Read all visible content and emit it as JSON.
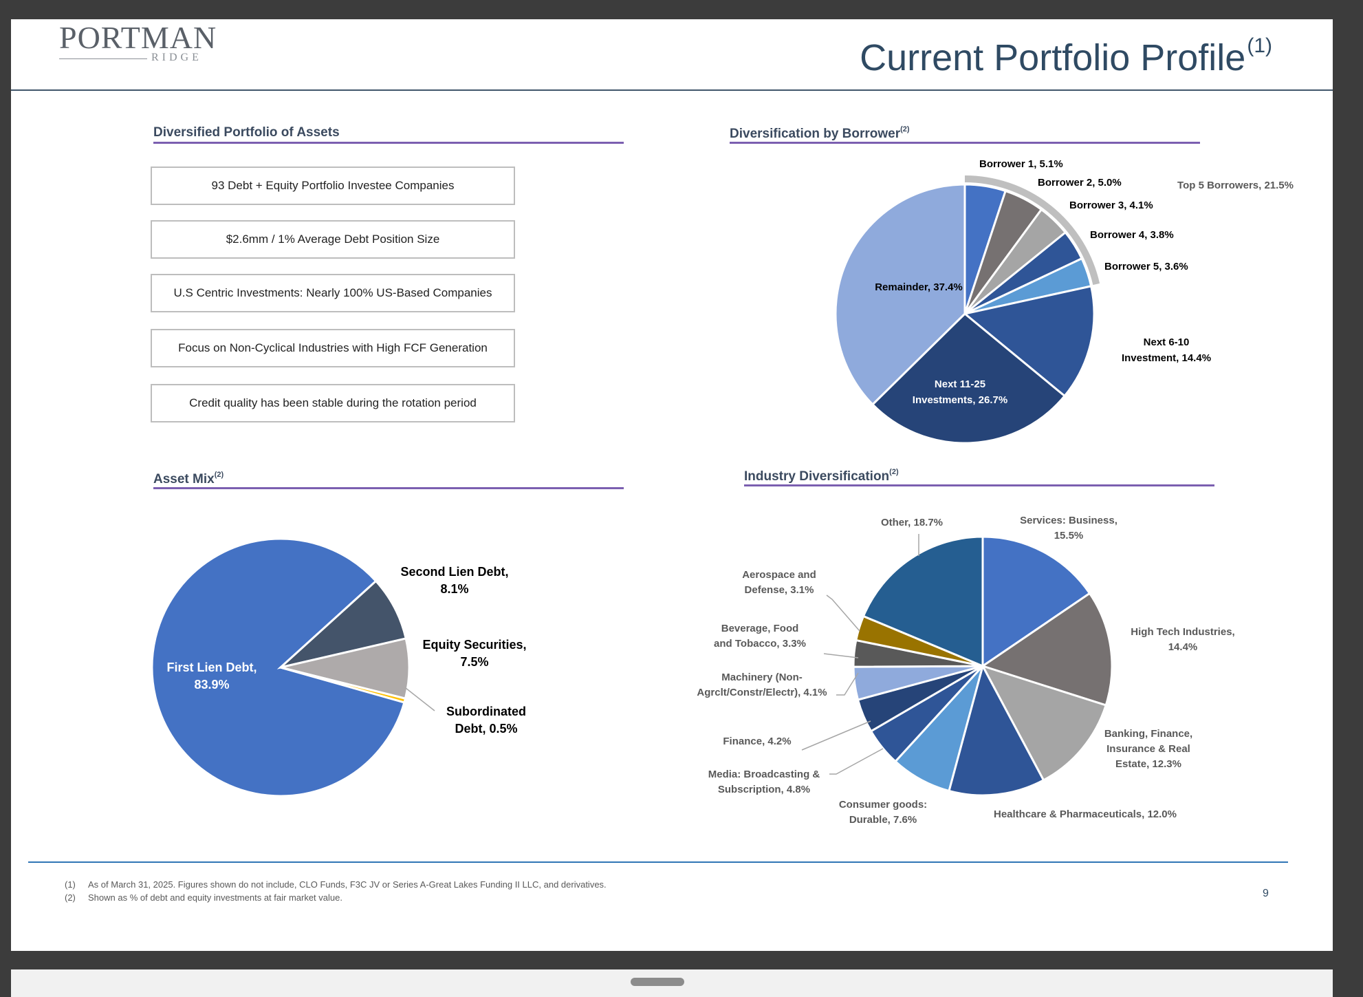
{
  "header": {
    "logo_main": "PORTMAN",
    "logo_sub": "RIDGE",
    "title": "Current Portfolio Profile",
    "title_sup": "(1)"
  },
  "sections": {
    "assets_title": "Diversified Portfolio of Assets",
    "borrower_title": "Diversification by Borrower",
    "borrower_sup": "(2)",
    "assetmix_title": "Asset Mix",
    "assetmix_sup": "(2)",
    "industry_title": "Industry Diversification",
    "industry_sup": "(2)"
  },
  "boxes": [
    "93 Debt + Equity Portfolio Investee Companies",
    "$2.6mm / 1% Average Debt Position Size",
    "U.S Centric Investments: Nearly 100% US-Based Companies",
    "Focus on Non-Cyclical Industries with High FCF Generation",
    "Credit quality has been stable during the rotation period"
  ],
  "chart_data": [
    {
      "type": "pie",
      "title": "Diversification by Borrower",
      "slices": [
        {
          "label": [
            "Borrower 1, 5.1%"
          ],
          "value": 5.1,
          "color": "#4472c4"
        },
        {
          "label": [
            "Borrower 2, 5.0%"
          ],
          "value": 5.0,
          "color": "#767171"
        },
        {
          "label": [
            "Borrower 3, 4.1%"
          ],
          "value": 4.1,
          "color": "#a5a5a5"
        },
        {
          "label": [
            "Borrower 4, 3.8%"
          ],
          "value": 3.8,
          "color": "#2f5597"
        },
        {
          "label": [
            "Borrower 5, 3.6%"
          ],
          "value": 3.6,
          "color": "#5b9bd5"
        },
        {
          "label": [
            "Next 6-10",
            "Investment, 14.4%"
          ],
          "value": 14.4,
          "color": "#2f5597"
        },
        {
          "label": [
            "Next 11-25",
            "Investments, 26.7%"
          ],
          "value": 26.7,
          "color": "#264478"
        },
        {
          "label": [
            "Remainder, 37.4%"
          ],
          "value": 37.4,
          "color": "#8faadc"
        }
      ],
      "annotation": "Top 5 Borrowers, 21.5%",
      "annotation_value": 21.5
    },
    {
      "type": "pie",
      "title": "Asset Mix",
      "slices": [
        {
          "label": [
            "First Lien Debt,",
            "83.9%"
          ],
          "value": 83.9,
          "color": "#4472c4"
        },
        {
          "label": [
            "Second Lien Debt,",
            "8.1%"
          ],
          "value": 8.1,
          "color": "#44546a"
        },
        {
          "label": [
            "Equity Securities,",
            "7.5%"
          ],
          "value": 7.5,
          "color": "#aeaaaa"
        },
        {
          "label": [
            "Subordinated",
            "Debt, 0.5%"
          ],
          "value": 0.5,
          "color": "#ffc000"
        }
      ]
    },
    {
      "type": "pie",
      "title": "Industry Diversification",
      "slices": [
        {
          "label": [
            "Services: Business,",
            "15.5%"
          ],
          "value": 15.5,
          "color": "#4472c4"
        },
        {
          "label": [
            "High Tech Industries,",
            "14.4%"
          ],
          "value": 14.4,
          "color": "#767171"
        },
        {
          "label": [
            "Banking, Finance,",
            "Insurance & Real",
            "Estate, 12.3%"
          ],
          "value": 12.3,
          "color": "#a5a5a5"
        },
        {
          "label": [
            "Healthcare & Pharmaceuticals, 12.0%"
          ],
          "value": 12.0,
          "color": "#2f5597"
        },
        {
          "label": [
            "Consumer goods:",
            "Durable, 7.6%"
          ],
          "value": 7.6,
          "color": "#5b9bd5"
        },
        {
          "label": [
            "Media: Broadcasting &",
            "Subscription, 4.8%"
          ],
          "value": 4.8,
          "color": "#2f5597"
        },
        {
          "label": [
            "Finance, 4.2%"
          ],
          "value": 4.2,
          "color": "#264478"
        },
        {
          "label": [
            "Machinery (Non-",
            "Agrclt/Constr/Electr), 4.1%"
          ],
          "value": 4.1,
          "color": "#8faadc"
        },
        {
          "label": [
            "Beverage, Food",
            "and Tobacco, 3.3%"
          ],
          "value": 3.3,
          "color": "#595959"
        },
        {
          "label": [
            "Aerospace and",
            "Defense, 3.1%"
          ],
          "value": 3.1,
          "color": "#997300"
        },
        {
          "label": [
            "Other, 18.7%"
          ],
          "value": 18.7,
          "color": "#255e91"
        }
      ]
    }
  ],
  "footer": {
    "notes": [
      {
        "num": "(1)",
        "text": "As of March 31, 2025. Figures shown do not include, CLO Funds, F3C JV or Series A-Great Lakes Funding II LLC, and derivatives."
      },
      {
        "num": "(2)",
        "text": "Shown as % of debt and equity investments at fair market value."
      }
    ],
    "page_number": "9"
  }
}
